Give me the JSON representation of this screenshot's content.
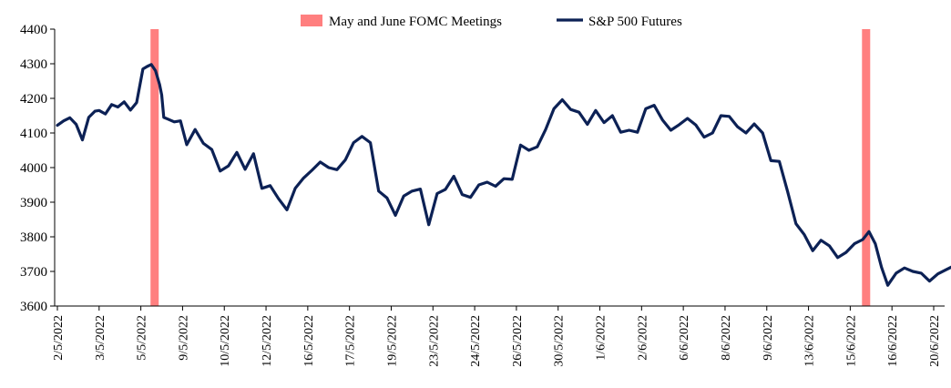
{
  "chart_data": {
    "type": "line",
    "title": "",
    "xlabel": "",
    "ylabel": "",
    "ylim": [
      3600,
      4400
    ],
    "yticks": [
      3600,
      3700,
      3800,
      3900,
      4000,
      4100,
      4200,
      4300,
      4400
    ],
    "grid": false,
    "legend_position": "top",
    "legend": [
      {
        "name": "May and June FOMC Meetings",
        "kind": "bar",
        "color": "#FF7F7F"
      },
      {
        "name": "S&P 500 Futures",
        "kind": "line",
        "color": "#0C2155"
      }
    ],
    "x_tick_labels": [
      "2/5/2022",
      "3/5/2022",
      "5/5/2022",
      "9/5/2022",
      "10/5/2022",
      "12/5/2022",
      "16/5/2022",
      "17/5/2022",
      "19/5/2022",
      "23/5/2022",
      "24/5/2022",
      "26/5/2022",
      "30/5/2022",
      "1/6/2022",
      "2/6/2022",
      "6/6/2022",
      "8/6/2022",
      "9/6/2022",
      "13/6/2022",
      "15/6/2022",
      "16/6/2022",
      "20/6/2022"
    ],
    "fomc_meeting_ticks": [
      2.33,
      19.38
    ],
    "series": [
      {
        "name": "S&P 500 Futures",
        "color": "#0C2155",
        "x": [
          0,
          0.15,
          0.3,
          0.45,
          0.6,
          0.75,
          0.9,
          1.0,
          1.15,
          1.3,
          1.45,
          1.6,
          1.75,
          1.9,
          2.05,
          2.15,
          2.25,
          2.35,
          2.45,
          2.5,
          2.55,
          2.65,
          2.8,
          2.95,
          3.1,
          3.3,
          3.5,
          3.7,
          3.9,
          4.1,
          4.3,
          4.5,
          4.7,
          4.9,
          5.1,
          5.3,
          5.5,
          5.7,
          5.9,
          6.1,
          6.3,
          6.5,
          6.7,
          6.9,
          7.1,
          7.3,
          7.5,
          7.7,
          7.9,
          8.1,
          8.3,
          8.5,
          8.7,
          8.9,
          9.1,
          9.3,
          9.5,
          9.7,
          9.9,
          10.1,
          10.3,
          10.5,
          10.7,
          10.9,
          11.1,
          11.3,
          11.5,
          11.7,
          11.9,
          12.1,
          12.3,
          12.5,
          12.7,
          12.9,
          13.1,
          13.3,
          13.5,
          13.7,
          13.9,
          14.1,
          14.3,
          14.5,
          14.7,
          14.9,
          15.1,
          15.3,
          15.5,
          15.7,
          15.9,
          16.1,
          16.3,
          16.5,
          16.7,
          16.9,
          17.1,
          17.3,
          17.5,
          17.7,
          17.9,
          18.1,
          18.3,
          18.5,
          18.7,
          18.9,
          19.1,
          19.3,
          19.45,
          19.6,
          19.75,
          19.9,
          20.1,
          20.3,
          20.5,
          20.7,
          20.9,
          21.1,
          21.3,
          21.5
        ],
        "values": [
          4122,
          4135,
          4144,
          4125,
          4080,
          4145,
          4163,
          4165,
          4155,
          4182,
          4175,
          4190,
          4166,
          4188,
          4285,
          4292,
          4298,
          4280,
          4240,
          4210,
          4145,
          4140,
          4132,
          4135,
          4066,
          4110,
          4070,
          4052,
          3990,
          4005,
          4044,
          3995,
          4040,
          3940,
          3948,
          3910,
          3878,
          3940,
          3970,
          3992,
          4016,
          4000,
          3994,
          4022,
          4072,
          4090,
          4072,
          3932,
          3912,
          3862,
          3918,
          3932,
          3938,
          3835,
          3925,
          3937,
          3975,
          3922,
          3914,
          3950,
          3958,
          3946,
          3968,
          3966,
          4065,
          4050,
          4060,
          4110,
          4170,
          4196,
          4168,
          4160,
          4125,
          4165,
          4130,
          4150,
          4102,
          4108,
          4102,
          4170,
          4180,
          4138,
          4108,
          4124,
          4142,
          4123,
          4088,
          4100,
          4150,
          4148,
          4118,
          4100,
          4126,
          4100,
          4020,
          4018,
          3930,
          3838,
          3806,
          3760,
          3790,
          3774,
          3740,
          3755,
          3780,
          3792,
          3815,
          3780,
          3712,
          3660,
          3695,
          3710,
          3700,
          3695,
          3672,
          3693,
          3705,
          3717
        ]
      }
    ]
  }
}
